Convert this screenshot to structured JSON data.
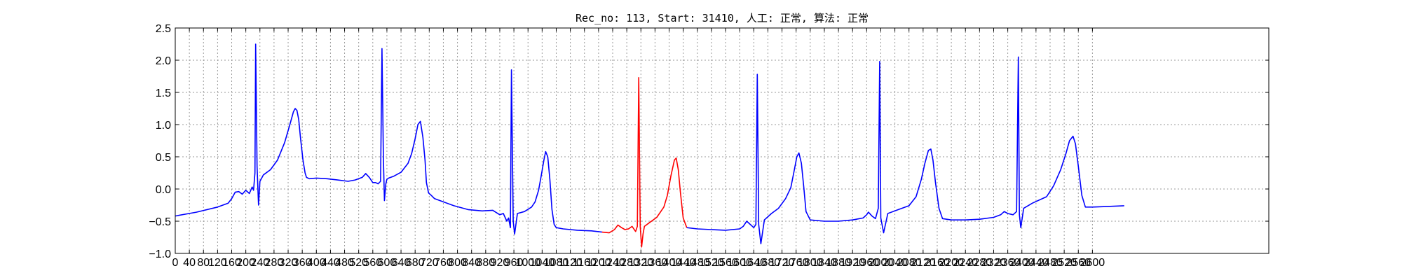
{
  "chart_data": {
    "type": "line",
    "title": "Rec_no: 113, Start: 31410, 人工: 正常, 算法: 正常",
    "xlabel": "",
    "ylabel": "",
    "xlim": [
      0,
      3100
    ],
    "ylim": [
      -1.0,
      2.5
    ],
    "grid": true,
    "x_ticks": [
      0,
      40,
      80,
      120,
      160,
      200,
      240,
      280,
      320,
      360,
      400,
      440,
      480,
      520,
      560,
      600,
      640,
      680,
      720,
      760,
      800,
      840,
      880,
      920,
      960,
      1000,
      1040,
      1080,
      1120,
      1160,
      1200,
      1240,
      1280,
      1320,
      1360,
      1400,
      1440,
      1480,
      1520,
      1560,
      1600,
      1640,
      1680,
      1720,
      1760,
      1800,
      1840,
      1880,
      1920,
      1960,
      2000,
      2040,
      2080,
      2120,
      2160,
      2200,
      2240,
      2280,
      2320,
      2360,
      2400,
      2440,
      2480,
      2520,
      2560,
      2600
    ],
    "y_ticks": [
      -1.0,
      -0.5,
      0.0,
      0.5,
      1.0,
      1.5,
      2.0,
      2.5
    ],
    "y_tick_labels": [
      "−1.0",
      "−0.5",
      "0.0",
      "0.5",
      "1.0",
      "1.5",
      "2.0",
      "2.5"
    ],
    "series": [
      {
        "color": "#0000ff",
        "x": [
          0,
          60,
          120,
          150,
          160,
          170,
          180,
          190,
          200,
          210,
          218,
          222,
          226,
          228,
          232,
          236,
          240,
          250,
          270,
          290,
          310,
          325,
          335,
          340,
          345,
          350,
          355,
          362,
          368,
          372,
          380,
          400,
          430,
          460,
          490,
          510,
          530,
          540,
          550,
          560,
          568,
          575,
          582,
          586,
          590,
          593,
          597,
          600,
          605,
          620,
          640,
          660,
          670,
          680,
          688,
          695,
          702,
          708,
          712,
          718,
          722,
          726,
          735,
          760,
          790,
          830,
          870,
          900,
          920,
          930,
          940,
          945,
          950,
          953,
          958,
          962,
          970,
          990,
          1010,
          1020,
          1030,
          1038,
          1045,
          1050,
          1056,
          1062,
          1068,
          1074,
          1080,
          1100,
          1140,
          1180,
          1210
        ],
        "y": [
          -0.42,
          -0.36,
          -0.28,
          -0.22,
          -0.15,
          -0.05,
          -0.04,
          -0.08,
          -0.02,
          -0.07,
          0.03,
          -0.02,
          0.25,
          2.25,
          0.35,
          -0.25,
          0.12,
          0.22,
          0.3,
          0.45,
          0.72,
          1.0,
          1.2,
          1.25,
          1.22,
          1.08,
          0.8,
          0.45,
          0.25,
          0.18,
          0.16,
          0.17,
          0.16,
          0.14,
          0.12,
          0.14,
          0.18,
          0.24,
          0.18,
          0.1,
          0.1,
          0.08,
          0.12,
          2.18,
          0.5,
          -0.18,
          0.08,
          0.15,
          0.17,
          0.2,
          0.26,
          0.4,
          0.55,
          0.78,
          1.0,
          1.05,
          0.8,
          0.45,
          0.1,
          -0.06,
          -0.08,
          -0.1,
          -0.15,
          -0.2,
          -0.26,
          -0.32,
          -0.34,
          -0.33,
          -0.4,
          -0.38,
          -0.5,
          -0.45,
          -0.6,
          1.85,
          -0.5,
          -0.7,
          -0.38,
          -0.35,
          -0.28,
          -0.2,
          -0.02,
          0.22,
          0.45,
          0.58,
          0.5,
          0.15,
          -0.32,
          -0.55,
          -0.6,
          -0.62,
          -0.64,
          -0.65,
          -0.67
        ]
      },
      {
        "color": "#ff0000",
        "x": [
          1210,
          1230,
          1245,
          1255,
          1265,
          1275,
          1285,
          1295,
          1305,
          1310,
          1314,
          1318,
          1322,
          1326,
          1330,
          1345,
          1365,
          1385,
          1395,
          1405,
          1415,
          1420,
          1426,
          1432,
          1440,
          1450
        ],
        "y": [
          -0.67,
          -0.68,
          -0.63,
          -0.56,
          -0.6,
          -0.63,
          -0.62,
          -0.58,
          -0.66,
          -0.58,
          1.73,
          -0.58,
          -0.9,
          -0.7,
          -0.58,
          -0.52,
          -0.44,
          -0.28,
          -0.1,
          0.2,
          0.45,
          0.48,
          0.3,
          -0.05,
          -0.45,
          -0.6
        ]
      },
      {
        "color": "#0000ff",
        "x": [
          1450,
          1480,
          1520,
          1560,
          1600,
          1610,
          1620,
          1630,
          1640,
          1646,
          1650,
          1654,
          1660,
          1670,
          1690,
          1710,
          1730,
          1745,
          1755,
          1762,
          1768,
          1775,
          1782,
          1788,
          1800,
          1840,
          1880,
          1920,
          1950,
          1960,
          1965,
          1975,
          1985,
          1993,
          1997,
          2000,
          2008,
          2020,
          2050,
          2080,
          2100,
          2115,
          2125,
          2135,
          2142,
          2148,
          2155,
          2165,
          2175,
          2200,
          2240,
          2280,
          2320,
          2340,
          2350,
          2360,
          2375,
          2385,
          2390,
          2393,
          2397,
          2405,
          2430,
          2470,
          2490,
          2510,
          2525,
          2535,
          2545,
          2552,
          2560,
          2570,
          2580,
          2600,
          2650,
          2690
        ],
        "y": [
          -0.6,
          -0.62,
          -0.63,
          -0.64,
          -0.62,
          -0.58,
          -0.5,
          -0.55,
          -0.6,
          -0.55,
          1.78,
          -0.55,
          -0.85,
          -0.48,
          -0.38,
          -0.3,
          -0.15,
          0.02,
          0.3,
          0.5,
          0.56,
          0.4,
          0.02,
          -0.35,
          -0.48,
          -0.5,
          -0.5,
          -0.48,
          -0.45,
          -0.4,
          -0.36,
          -0.42,
          -0.46,
          -0.3,
          1.98,
          -0.45,
          -0.68,
          -0.38,
          -0.32,
          -0.26,
          -0.12,
          0.15,
          0.4,
          0.6,
          0.62,
          0.45,
          0.1,
          -0.3,
          -0.46,
          -0.48,
          -0.48,
          -0.47,
          -0.44,
          -0.4,
          -0.35,
          -0.38,
          -0.4,
          -0.35,
          2.05,
          -0.4,
          -0.6,
          -0.3,
          -0.22,
          -0.12,
          0.05,
          0.3,
          0.55,
          0.75,
          0.82,
          0.7,
          0.35,
          -0.1,
          -0.28,
          -0.28,
          -0.27,
          -0.26
        ]
      }
    ]
  }
}
